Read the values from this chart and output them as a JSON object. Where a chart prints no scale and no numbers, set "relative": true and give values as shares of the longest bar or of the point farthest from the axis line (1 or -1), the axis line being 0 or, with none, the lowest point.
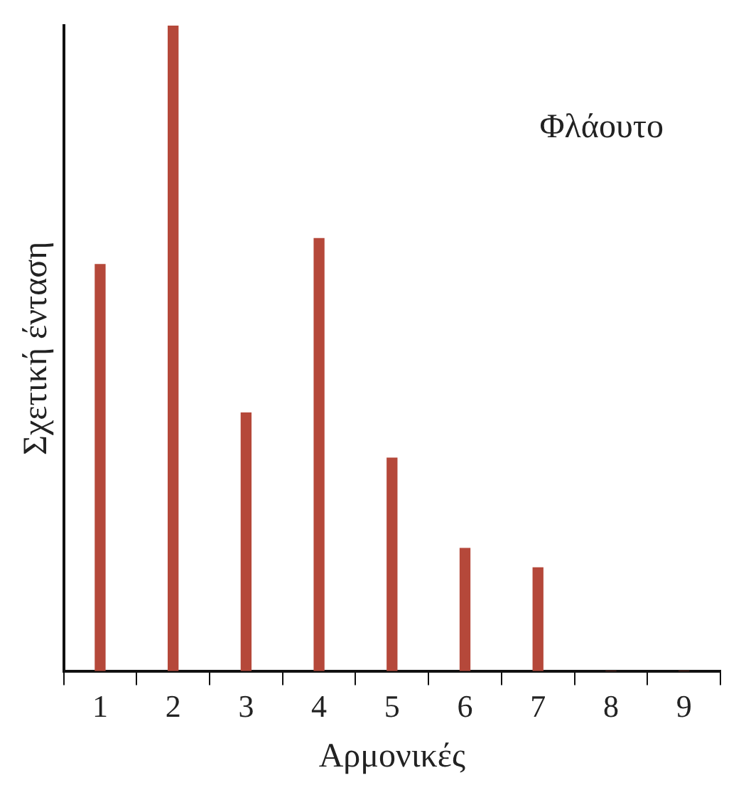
{
  "chart_data": {
    "type": "bar",
    "relative": true,
    "xlabel": "Αρμονικές",
    "ylabel": "Σχετική ένταση",
    "annotations": [
      "Φλάουτο"
    ],
    "categories": [
      "1",
      "2",
      "3",
      "4",
      "5",
      "6",
      "7",
      "8",
      "9"
    ],
    "values": [
      0.63,
      1,
      0.4,
      0.67,
      0.33,
      0.19,
      0.16,
      0,
      0
    ],
    "color": "#b5483a",
    "grid": false,
    "legend": false
  }
}
